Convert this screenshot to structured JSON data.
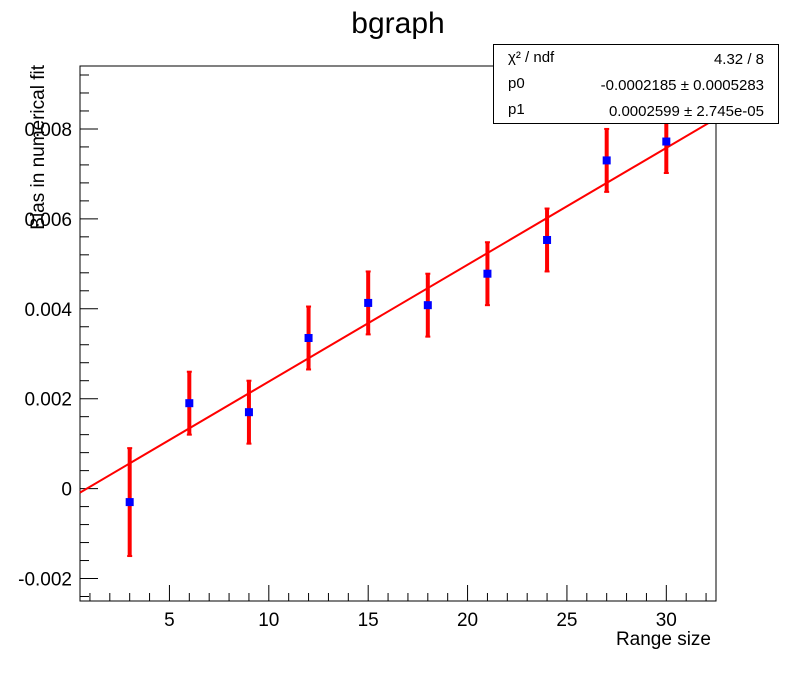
{
  "chart_data": {
    "type": "scatter",
    "title": "bgraph",
    "xlabel": "Range size",
    "ylabel": "Bias in numerical fit",
    "xlim": [
      0.5,
      32.5
    ],
    "ylim": [
      -0.0025,
      0.0094
    ],
    "x_ticks": [
      5,
      10,
      15,
      20,
      25,
      30
    ],
    "x_tick_labels": [
      "5",
      "10",
      "15",
      "20",
      "25",
      "30"
    ],
    "y_ticks": [
      -0.002,
      0,
      0.002,
      0.004,
      0.006,
      0.008
    ],
    "y_tick_labels": [
      "-0.002",
      "0",
      "0.002",
      "0.004",
      "0.006",
      "0.008"
    ],
    "grid": false,
    "points": {
      "x": [
        3,
        6,
        9,
        12,
        15,
        18,
        21,
        24,
        27,
        30
      ],
      "y": [
        -0.0003,
        0.0019,
        0.0017,
        0.00335,
        0.00413,
        0.00408,
        0.00478,
        0.00553,
        0.0073,
        0.00772
      ],
      "err": [
        0.0012,
        0.0007,
        0.0007,
        0.0007,
        0.0007,
        0.0007,
        0.0007,
        0.0007,
        0.0007,
        0.0007
      ],
      "marker_color": "#0000ff",
      "error_color": "#ff0000"
    },
    "fit": {
      "p0": -0.0002185,
      "p1": 0.0002599,
      "color": "#ff0000"
    }
  },
  "stats_box": {
    "rows": [
      {
        "name": "χ² / ndf",
        "value": "4.32 / 8"
      },
      {
        "name": "p0",
        "value": "-0.0002185 ± 0.0005283"
      },
      {
        "name": "p1",
        "value": "0.0002599 ± 2.745e-05"
      }
    ]
  }
}
